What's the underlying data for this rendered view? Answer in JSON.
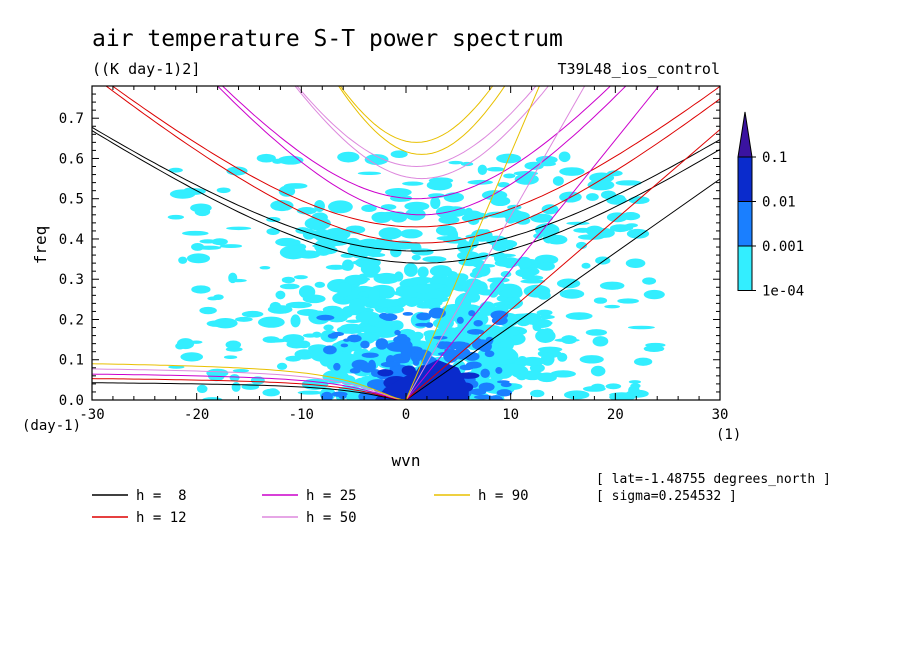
{
  "chart_data": {
    "type": "heatmap",
    "title": "air temperature S-T power spectrum",
    "units_label": "((K day-1)2]",
    "experiment": "T39L48_ios_control",
    "xlabel": "wvn",
    "ylabel": "freq",
    "x_unit_label": "(1)",
    "y_unit_label": "(day-1)",
    "xlim": [
      -30,
      30
    ],
    "ylim": [
      0,
      0.78
    ],
    "x_ticks": [
      -30,
      -20,
      -10,
      0,
      10,
      20,
      30
    ],
    "x_tick_labels": [
      "-30",
      "-20",
      "-10",
      "0",
      "10",
      "20",
      "30"
    ],
    "y_ticks": [
      0,
      0.1,
      0.2,
      0.3,
      0.4,
      0.5,
      0.6,
      0.7
    ],
    "y_tick_labels": [
      "0.0",
      "0.1",
      "0.2",
      "0.3",
      "0.4",
      "0.5",
      "0.6",
      "0.7"
    ],
    "colorbar": {
      "levels": [
        0.0001,
        0.001,
        0.01,
        0.1
      ],
      "labels": [
        "1e-04",
        "0.001",
        "0.01",
        "0.1"
      ],
      "colors": [
        "#33eeff",
        "#1a7fff",
        "#0a2bcc",
        "#3a13a0"
      ]
    },
    "regions": [
      {
        "level": 1,
        "x": [
          -22,
          24
        ],
        "y": [
          0.0,
          0.62
        ]
      },
      {
        "level": 2,
        "x": [
          -6,
          8
        ],
        "y": [
          0.0,
          0.14
        ]
      },
      {
        "level": 3,
        "x": [
          -2,
          6
        ],
        "y": [
          0.0,
          0.08
        ]
      }
    ],
    "dispersion_curves": [
      {
        "h": 8,
        "label": "h =  8",
        "color": "#000000",
        "kelvin_slope_freq_per_wvn": 0.0183,
        "ig_min_freq": [
          0.34,
          0.37
        ],
        "mrg_max_freq": 0.05
      },
      {
        "h": 12,
        "label": "h = 12",
        "color": "#dd0000",
        "kelvin_slope_freq_per_wvn": 0.0224,
        "ig_min_freq": [
          0.39,
          0.43
        ],
        "mrg_max_freq": 0.062
      },
      {
        "h": 25,
        "label": "h = 25",
        "color": "#cc00cc",
        "kelvin_slope_freq_per_wvn": 0.0323,
        "ig_min_freq": [
          0.46,
          0.5
        ],
        "mrg_max_freq": 0.075
      },
      {
        "h": 50,
        "label": "h = 50",
        "color": "#dd88dd",
        "kelvin_slope_freq_per_wvn": 0.0457,
        "ig_min_freq": [
          0.55,
          0.58
        ],
        "mrg_max_freq": 0.09
      },
      {
        "h": 90,
        "label": "h = 90",
        "color": "#e8c000",
        "kelvin_slope_freq_per_wvn": 0.0612,
        "ig_min_freq": [
          0.61,
          0.64
        ],
        "mrg_max_freq": 0.105
      }
    ],
    "annotations": [
      "[ lat=-1.48755 degrees_north ]",
      "[ sigma=0.254532 ]"
    ]
  }
}
